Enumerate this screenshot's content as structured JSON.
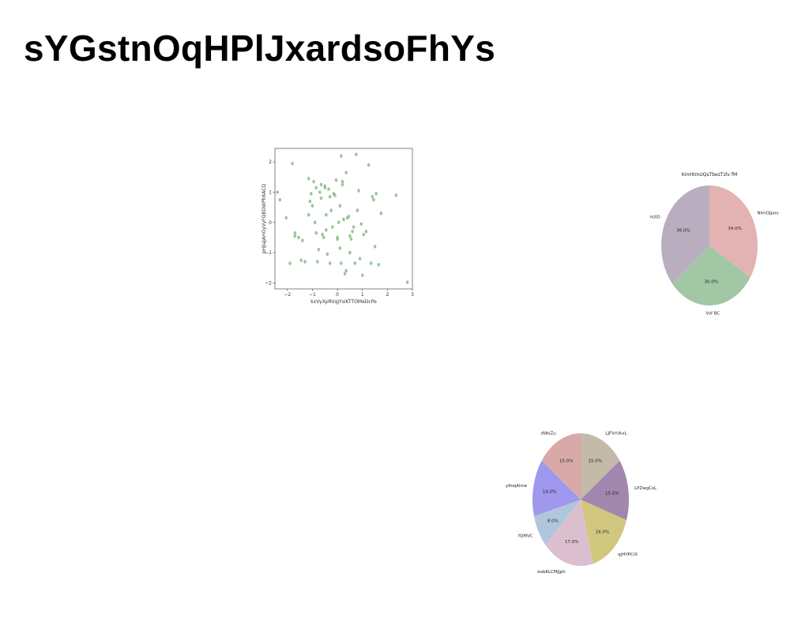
{
  "page": {
    "title": "sYGstnOqHPlJxardsoFhYs"
  },
  "chart_data": [
    {
      "type": "scatter",
      "title": "",
      "xlabel": "kxVyXpRVqjYsiKTTOMeDcPe",
      "ylabel": "pHjiajAHGyVyFQBDWPhKACQ",
      "xlim": [
        -2.5,
        3
      ],
      "ylim": [
        -2.2,
        2.45
      ],
      "xticks": [
        "-2",
        "-1",
        "0",
        "1",
        "2",
        "3"
      ],
      "yticks": [
        "-2",
        "-1",
        "0",
        "1",
        "2"
      ],
      "color": "#8fc08f",
      "grid": false,
      "points": [
        [
          -2.4,
          1.0
        ],
        [
          -2.3,
          0.75
        ],
        [
          -2.05,
          0.15
        ],
        [
          -1.9,
          -1.35
        ],
        [
          -1.8,
          1.95
        ],
        [
          -1.7,
          -0.35
        ],
        [
          -1.7,
          -0.45
        ],
        [
          -1.55,
          -0.5
        ],
        [
          -1.45,
          -1.25
        ],
        [
          -1.4,
          -0.6
        ],
        [
          -1.3,
          -1.3
        ],
        [
          -1.15,
          0.25
        ],
        [
          -1.15,
          1.45
        ],
        [
          -1.1,
          0.7
        ],
        [
          -1.05,
          0.95
        ],
        [
          -1.0,
          0.55
        ],
        [
          -0.95,
          1.35
        ],
        [
          -0.9,
          0.0
        ],
        [
          -0.85,
          -0.35
        ],
        [
          -0.85,
          1.15
        ],
        [
          -0.8,
          -1.3
        ],
        [
          -0.75,
          -0.9
        ],
        [
          -0.7,
          1.0
        ],
        [
          -0.65,
          0.8
        ],
        [
          -0.65,
          1.25
        ],
        [
          -0.6,
          -0.4
        ],
        [
          -0.55,
          -0.5
        ],
        [
          -0.5,
          1.15
        ],
        [
          -0.5,
          1.2
        ],
        [
          -0.45,
          0.25
        ],
        [
          -0.45,
          -0.25
        ],
        [
          -0.4,
          -1.05
        ],
        [
          -0.35,
          1.1
        ],
        [
          -0.3,
          0.85
        ],
        [
          -0.3,
          -1.35
        ],
        [
          -0.25,
          0.4
        ],
        [
          -0.2,
          -0.15
        ],
        [
          -0.15,
          0.95
        ],
        [
          -0.1,
          0.9
        ],
        [
          -0.05,
          1.4
        ],
        [
          0.0,
          -0.5
        ],
        [
          0.0,
          -0.55
        ],
        [
          0.05,
          0.0
        ],
        [
          0.1,
          -0.85
        ],
        [
          0.1,
          0.55
        ],
        [
          0.15,
          2.2
        ],
        [
          0.15,
          -1.35
        ],
        [
          0.2,
          1.35
        ],
        [
          0.2,
          1.25
        ],
        [
          0.25,
          0.1
        ],
        [
          0.3,
          -1.7
        ],
        [
          0.35,
          1.65
        ],
        [
          0.35,
          -1.6
        ],
        [
          0.4,
          0.15
        ],
        [
          0.45,
          0.2
        ],
        [
          0.5,
          -1.0
        ],
        [
          0.5,
          -0.45
        ],
        [
          0.55,
          -0.55
        ],
        [
          0.6,
          -0.3
        ],
        [
          0.65,
          -0.15
        ],
        [
          0.7,
          -1.35
        ],
        [
          0.75,
          2.25
        ],
        [
          0.8,
          0.4
        ],
        [
          0.85,
          1.05
        ],
        [
          0.9,
          -1.2
        ],
        [
          0.95,
          -0.05
        ],
        [
          1.0,
          -1.75
        ],
        [
          1.05,
          -0.4
        ],
        [
          1.15,
          -0.3
        ],
        [
          1.25,
          1.9
        ],
        [
          1.35,
          -1.35
        ],
        [
          1.4,
          0.85
        ],
        [
          1.45,
          0.75
        ],
        [
          1.5,
          -0.8
        ],
        [
          1.55,
          0.95
        ],
        [
          1.65,
          -1.4
        ],
        [
          1.75,
          0.3
        ],
        [
          2.35,
          0.9
        ],
        [
          2.8,
          -1.98
        ]
      ]
    },
    {
      "type": "pie",
      "title": "KmHtmUQsTbezTzlv fM",
      "start_angle_deg": 90,
      "direction": "clockwise",
      "slices": [
        {
          "label": "NImOJpov",
          "value": 34.0,
          "pct": "34.0%",
          "color": "#e2b3b2"
        },
        {
          "label": "Vsf  BC",
          "value": 30.0,
          "pct": "30.0%",
          "color": "#a1c7a5"
        },
        {
          "label": "nUiD",
          "value": 36.0,
          "pct": "36.0%",
          "color": "#b9aebf"
        }
      ]
    },
    {
      "type": "pie",
      "title": "",
      "start_angle_deg": 90,
      "direction": "clockwise",
      "slices": [
        {
          "label": "LJFVrUkxL",
          "value": 15.0,
          "pct": "15.0%",
          "color": "#c3baaa"
        },
        {
          "label": "LPZwgCsL",
          "value": 15.0,
          "pct": "15.0%",
          "color": "#a186ad"
        },
        {
          "label": "qjHYPCiX",
          "value": 16.0,
          "pct": "16.0%",
          "color": "#d2c77e"
        },
        {
          "label": "eobKLCMJjph",
          "value": 17.0,
          "pct": "17.0%",
          "color": "#dcbfcf"
        },
        {
          "label": "fQMVC",
          "value": 8.0,
          "pct": "8.0%",
          "color": "#b0c6dc"
        },
        {
          "label": "yIhejAlme",
          "value": 14.0,
          "pct": "14.0%",
          "color": "#9f98ec"
        },
        {
          "label": "dWoZu",
          "value": 15.0,
          "pct": "15.0%",
          "color": "#d9a8a8"
        }
      ]
    }
  ]
}
